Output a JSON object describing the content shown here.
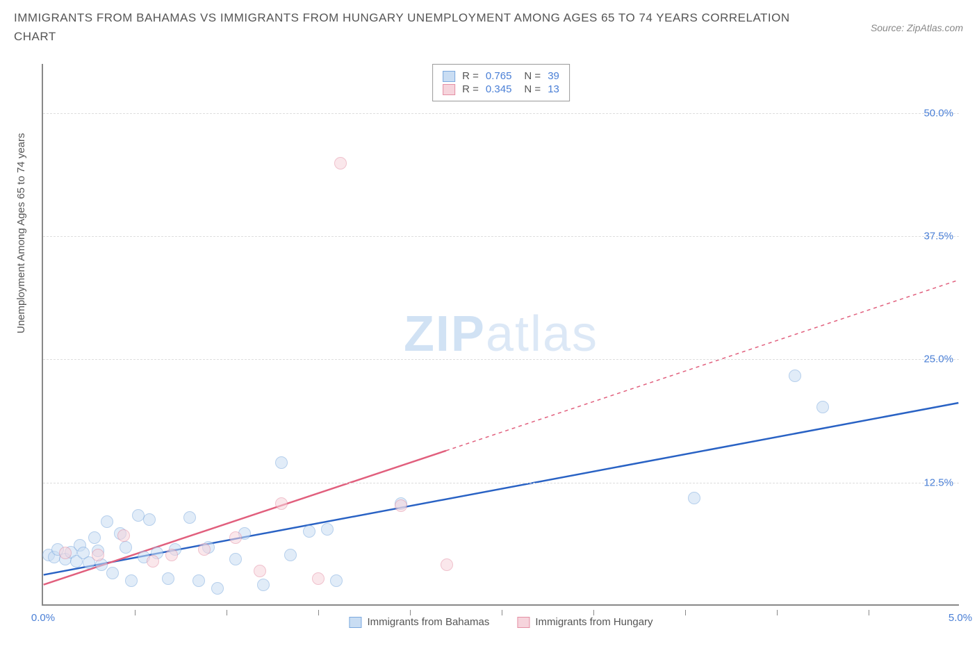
{
  "title": "IMMIGRANTS FROM BAHAMAS VS IMMIGRANTS FROM HUNGARY UNEMPLOYMENT AMONG AGES 65 TO 74 YEARS CORRELATION CHART",
  "source": "Source: ZipAtlas.com",
  "ylabel": "Unemployment Among Ages 65 to 74 years",
  "watermark_a": "ZIP",
  "watermark_b": "atlas",
  "chart": {
    "type": "scatter_with_trend",
    "xlim": [
      0,
      5.0
    ],
    "ylim": [
      0,
      55
    ],
    "xtick_labels": [
      "0.0%",
      "5.0%"
    ],
    "xtick_positions_minor": [
      0.5,
      1.0,
      1.5,
      2.0,
      2.5,
      3.0,
      3.5,
      4.0,
      4.5
    ],
    "ytick_labels": [
      "12.5%",
      "25.0%",
      "37.5%",
      "50.0%"
    ],
    "ytick_positions": [
      12.5,
      25.0,
      37.5,
      50.0
    ],
    "grid_color": "#dddddd",
    "axis_color": "#888888",
    "background_color": "#ffffff",
    "series": [
      {
        "name": "Immigrants from Bahamas",
        "fill": "#c9ddf3",
        "stroke": "#7aa8de",
        "line_color": "#2962c4",
        "R": "0.765",
        "N": "39",
        "trend": {
          "x1": 0.0,
          "y1": 3.0,
          "x2": 5.0,
          "y2": 20.5,
          "solid_until_x": 5.0
        },
        "points": [
          [
            0.03,
            5.0
          ],
          [
            0.06,
            4.8
          ],
          [
            0.08,
            5.6
          ],
          [
            0.12,
            4.6
          ],
          [
            0.15,
            5.3
          ],
          [
            0.18,
            4.4
          ],
          [
            0.2,
            6.0
          ],
          [
            0.22,
            5.2
          ],
          [
            0.25,
            4.2
          ],
          [
            0.28,
            6.8
          ],
          [
            0.3,
            5.4
          ],
          [
            0.32,
            4.0
          ],
          [
            0.35,
            8.4
          ],
          [
            0.38,
            3.2
          ],
          [
            0.42,
            7.2
          ],
          [
            0.45,
            5.8
          ],
          [
            0.48,
            2.4
          ],
          [
            0.52,
            9.0
          ],
          [
            0.55,
            4.8
          ],
          [
            0.58,
            8.6
          ],
          [
            0.62,
            5.2
          ],
          [
            0.68,
            2.6
          ],
          [
            0.72,
            5.6
          ],
          [
            0.8,
            8.8
          ],
          [
            0.85,
            2.4
          ],
          [
            0.9,
            5.8
          ],
          [
            0.95,
            1.6
          ],
          [
            1.05,
            4.6
          ],
          [
            1.1,
            7.2
          ],
          [
            1.2,
            2.0
          ],
          [
            1.3,
            14.4
          ],
          [
            1.35,
            5.0
          ],
          [
            1.45,
            7.4
          ],
          [
            1.55,
            7.6
          ],
          [
            1.6,
            2.4
          ],
          [
            1.95,
            10.2
          ],
          [
            3.55,
            10.8
          ],
          [
            4.1,
            23.2
          ],
          [
            4.25,
            20.0
          ]
        ]
      },
      {
        "name": "Immigrants from Hungary",
        "fill": "#f6d4dc",
        "stroke": "#e48fa4",
        "line_color": "#e15f7d",
        "R": "0.345",
        "N": "13",
        "trend": {
          "x1": 0.0,
          "y1": 2.0,
          "x2": 5.0,
          "y2": 33.0,
          "solid_until_x": 2.2
        },
        "points": [
          [
            0.12,
            5.2
          ],
          [
            0.3,
            5.0
          ],
          [
            0.44,
            7.0
          ],
          [
            0.6,
            4.4
          ],
          [
            0.7,
            5.0
          ],
          [
            0.88,
            5.6
          ],
          [
            1.05,
            6.8
          ],
          [
            1.18,
            3.4
          ],
          [
            1.3,
            10.2
          ],
          [
            1.5,
            2.6
          ],
          [
            1.62,
            44.8
          ],
          [
            1.95,
            10.0
          ],
          [
            2.2,
            4.0
          ]
        ]
      }
    ]
  },
  "legend_bottom": [
    "Immigrants from Bahamas",
    "Immigrants from Hungary"
  ],
  "legend_top_labels": {
    "R": "R =",
    "N": "N ="
  }
}
